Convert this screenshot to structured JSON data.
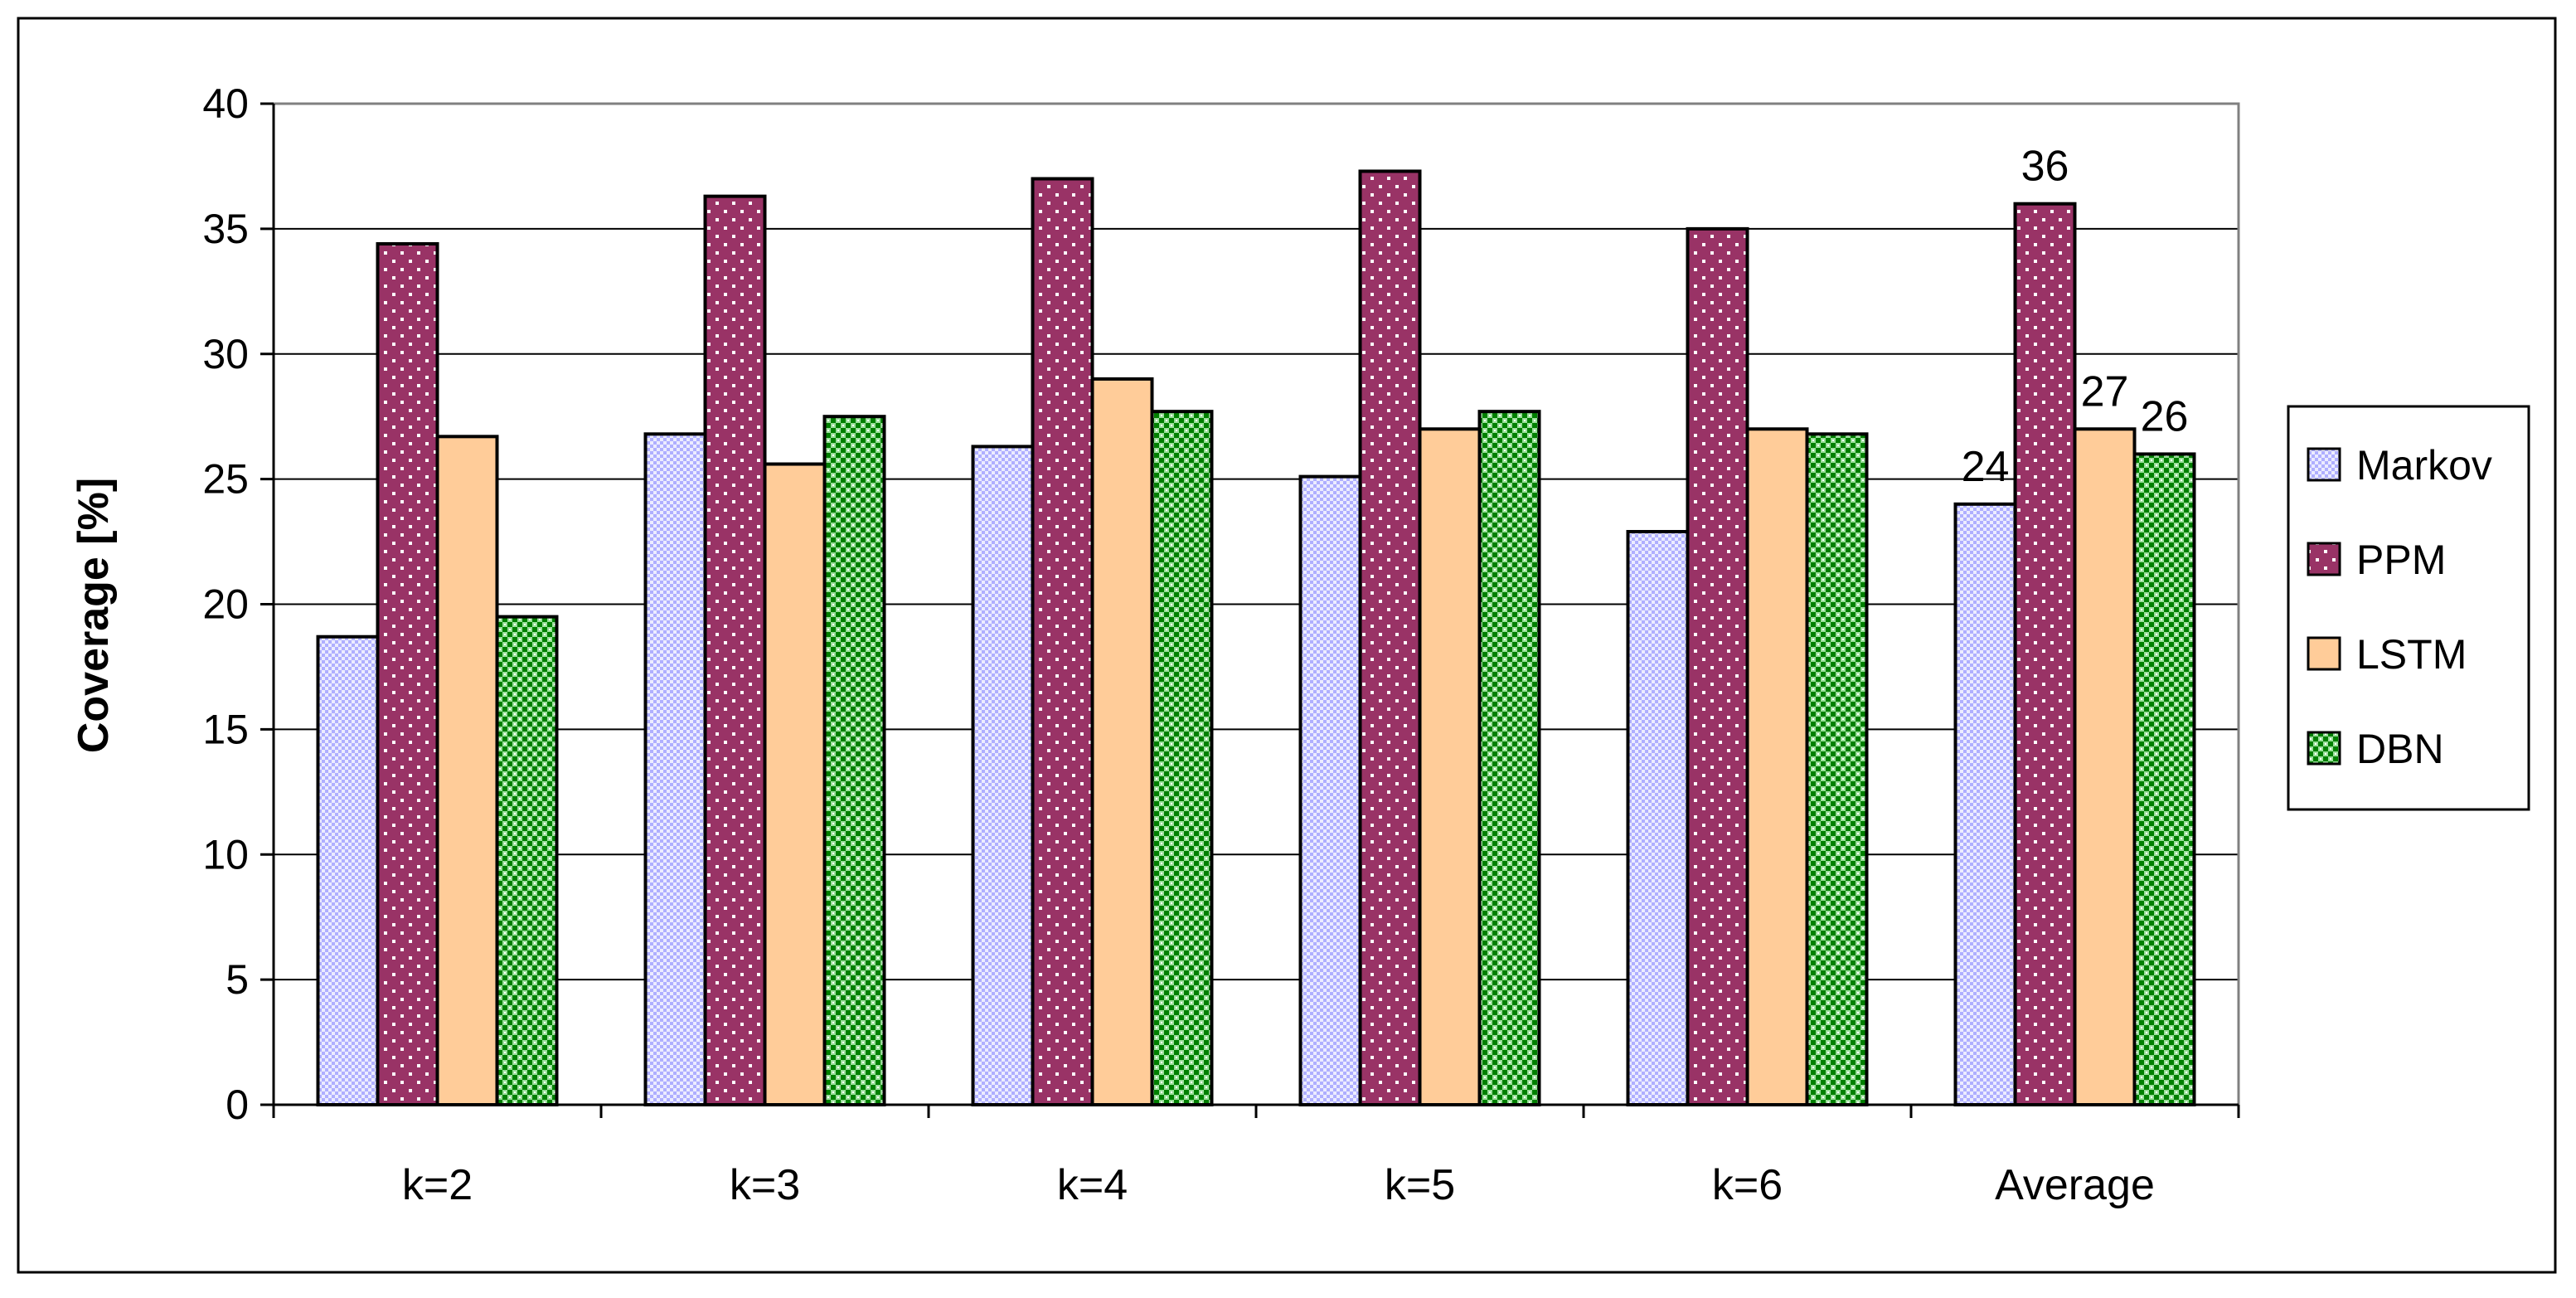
{
  "chart_data": {
    "type": "bar",
    "title": "",
    "xlabel": "",
    "ylabel": "Coverage [%]",
    "ylim": [
      0,
      40
    ],
    "yticks": [
      0,
      5,
      10,
      15,
      20,
      25,
      30,
      35,
      40
    ],
    "grid": true,
    "legend_position": "right",
    "categories": [
      "k=2",
      "k=3",
      "k=4",
      "k=5",
      "k=6",
      "Average"
    ],
    "series": [
      {
        "name": "Markov",
        "values": [
          18.7,
          26.8,
          26.3,
          25.1,
          22.9,
          24
        ],
        "color": "#CCCCFF",
        "pattern": "fine-checker"
      },
      {
        "name": "PPM",
        "values": [
          34.4,
          36.3,
          37.0,
          37.3,
          35.0,
          36
        ],
        "color": "#993366",
        "pattern": "white-dots"
      },
      {
        "name": "LSTM",
        "values": [
          26.7,
          25.6,
          29.0,
          27.0,
          27.0,
          27
        ],
        "color": "#FFCC99",
        "pattern": "solid"
      },
      {
        "name": "DBN",
        "values": [
          19.5,
          27.5,
          27.7,
          27.7,
          26.8,
          26
        ],
        "color": "#008000",
        "pattern": "white-checker"
      }
    ],
    "data_labels": {
      "category": "Average",
      "values": [
        "24",
        "36",
        "27",
        "26"
      ]
    }
  }
}
